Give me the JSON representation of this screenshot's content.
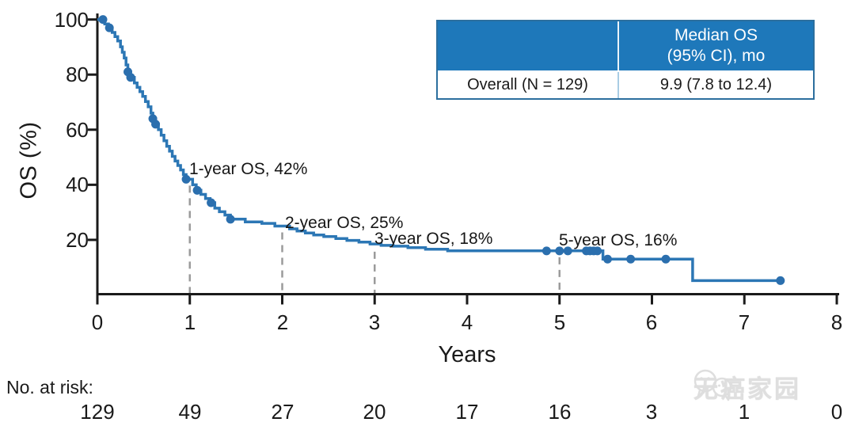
{
  "chart_data": {
    "type": "line",
    "subtype": "kaplan-meier",
    "title": "",
    "xlabel": "Years",
    "ylabel": "OS (%)",
    "xlim": [
      0,
      8
    ],
    "ylim": [
      0,
      100
    ],
    "grid": false,
    "xaxis_ticks": [
      "0",
      "1",
      "2",
      "3",
      "4",
      "5",
      "6",
      "7",
      "8"
    ],
    "yaxis_ticks": [
      "100",
      "80",
      "60",
      "40",
      "20"
    ],
    "yaxis_tick_values": [
      100,
      80,
      60,
      40,
      20
    ],
    "colors": {
      "curve": "#2c77b5",
      "censor_dot": "#2b6fae",
      "dropline": "#9b9b9b",
      "axis": "#1a1a1a"
    },
    "series": [
      {
        "name": "Overall (N = 129)",
        "points": [
          [
            0,
            100
          ],
          [
            0.08,
            98.4
          ],
          [
            0.12,
            96.9
          ],
          [
            0.16,
            95.3
          ],
          [
            0.19,
            93.8
          ],
          [
            0.22,
            92.2
          ],
          [
            0.25,
            90.1
          ],
          [
            0.27,
            88.1
          ],
          [
            0.29,
            86.0
          ],
          [
            0.31,
            83.5
          ],
          [
            0.33,
            81.0
          ],
          [
            0.36,
            79.0
          ],
          [
            0.4,
            77.0
          ],
          [
            0.43,
            75.4
          ],
          [
            0.46,
            73.8
          ],
          [
            0.49,
            72.1
          ],
          [
            0.52,
            70.2
          ],
          [
            0.55,
            68.3
          ],
          [
            0.58,
            66.0
          ],
          [
            0.6,
            64.0
          ],
          [
            0.63,
            62.0
          ],
          [
            0.66,
            60.0
          ],
          [
            0.69,
            58.0
          ],
          [
            0.72,
            56.0
          ],
          [
            0.75,
            54.0
          ],
          [
            0.78,
            52.2
          ],
          [
            0.81,
            50.3
          ],
          [
            0.84,
            48.6
          ],
          [
            0.87,
            47.0
          ],
          [
            0.9,
            45.4
          ],
          [
            0.93,
            43.7
          ],
          [
            0.96,
            42.0
          ],
          [
            1.03,
            40.0
          ],
          [
            1.07,
            38.0
          ],
          [
            1.12,
            36.5
          ],
          [
            1.17,
            35.0
          ],
          [
            1.22,
            33.5
          ],
          [
            1.27,
            31.5
          ],
          [
            1.32,
            30.2
          ],
          [
            1.38,
            29.0
          ],
          [
            1.44,
            27.5
          ],
          [
            1.6,
            26.5
          ],
          [
            1.78,
            26.0
          ],
          [
            1.92,
            25.0
          ],
          [
            2.08,
            24.0
          ],
          [
            2.16,
            23.2
          ],
          [
            2.25,
            22.5
          ],
          [
            2.34,
            21.8
          ],
          [
            2.45,
            21.2
          ],
          [
            2.58,
            20.5
          ],
          [
            2.7,
            19.8
          ],
          [
            2.83,
            19.2
          ],
          [
            2.95,
            18.5
          ],
          [
            3.07,
            18.0
          ],
          [
            3.2,
            17.7
          ],
          [
            3.36,
            17.2
          ],
          [
            3.55,
            16.6
          ],
          [
            3.79,
            16.0
          ],
          [
            5.47,
            13.0
          ],
          [
            6.44,
            5.2
          ]
        ],
        "end_x": 7.4,
        "censor_marks": [
          [
            0.06,
            100
          ],
          [
            0.13,
            97
          ],
          [
            0.33,
            81
          ],
          [
            0.36,
            79
          ],
          [
            0.6,
            64
          ],
          [
            0.63,
            62
          ],
          [
            0.96,
            42
          ],
          [
            1.08,
            38
          ],
          [
            1.23,
            33.5
          ],
          [
            1.44,
            27.5
          ],
          [
            4.86,
            16
          ],
          [
            5.0,
            16
          ],
          [
            5.09,
            16
          ],
          [
            5.29,
            16
          ],
          [
            5.33,
            16
          ],
          [
            5.37,
            16
          ],
          [
            5.41,
            16
          ],
          [
            5.52,
            13
          ],
          [
            5.77,
            13
          ],
          [
            6.15,
            13
          ],
          [
            7.39,
            5.2
          ]
        ]
      }
    ],
    "droplines": [
      {
        "x": 1,
        "y": 42
      },
      {
        "x": 2,
        "y": 25
      },
      {
        "x": 3,
        "y": 18
      },
      {
        "x": 5,
        "y": 16
      }
    ],
    "annotations": [
      {
        "text": "1-year OS, 42%"
      },
      {
        "text": "2-year OS, 25%"
      },
      {
        "text": "3-year OS, 18%"
      },
      {
        "text": "5-year OS, 16%"
      }
    ],
    "legend_position": "none"
  },
  "inset_table": {
    "header_col2_line1": "Median OS",
    "header_col2_line2": "(95% CI), mo",
    "row_label": "Overall (N = 129)",
    "row_value": "9.9 (7.8 to 12.4)",
    "header_bg": "#1e78ba"
  },
  "risk_table": {
    "label": "No. at risk:",
    "values": [
      "129",
      "49",
      "27",
      "20",
      "17",
      "16",
      "3",
      "1",
      "0"
    ]
  },
  "watermark": {
    "text": "无癌家园"
  }
}
